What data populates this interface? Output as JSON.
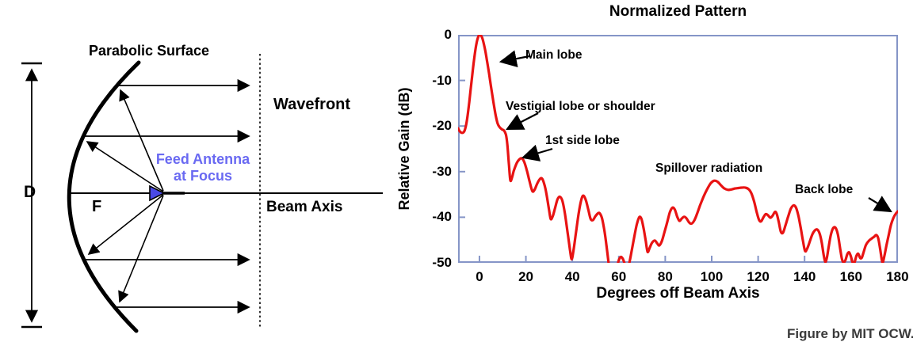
{
  "figure_credit": "Figure by MIT OCW.",
  "left_diagram": {
    "labels": {
      "parabolic_surface": "Parabolic Surface",
      "wavefront": "Wavefront",
      "feed_antenna_line1": "Feed Antenna",
      "feed_antenna_line2": "at Focus",
      "beam_axis": "Beam Axis",
      "diameter": "D",
      "focal_length": "F"
    },
    "colors": {
      "feed_text": "#6a6af2",
      "feed_triangle": "#4a4ae6",
      "line": "#000000"
    }
  },
  "chart_data": {
    "type": "line",
    "title": "Normalized Pattern",
    "xlabel": "Degrees off Beam Axis",
    "ylabel": "Relative Gain (dB)",
    "xlim": [
      -9.2,
      180.2
    ],
    "ylim": [
      -50,
      0
    ],
    "x_ticks": [
      0,
      20,
      40,
      60,
      80,
      100,
      120,
      140,
      160,
      180
    ],
    "y_ticks": [
      0,
      -10,
      -20,
      -30,
      -40,
      -50
    ],
    "grid": false,
    "legend": "none",
    "line_color": "#e81313",
    "frame_color": "#8595c7",
    "series": [
      {
        "name": "normalized gain pattern",
        "points": [
          [
            -9.2,
            -20.5
          ],
          [
            -8.4,
            -21.2
          ],
          [
            -7.4,
            -21.5
          ],
          [
            -6.4,
            -21.0
          ],
          [
            -5.4,
            -18.8
          ],
          [
            -4.4,
            -14.8
          ],
          [
            -3.4,
            -10.2
          ],
          [
            -2.4,
            -5.8
          ],
          [
            -1.4,
            -2.2
          ],
          [
            -0.5,
            -0.4
          ],
          [
            0.3,
            0.0
          ],
          [
            1.2,
            -0.7
          ],
          [
            2.2,
            -2.7
          ],
          [
            3.2,
            -5.5
          ],
          [
            4.2,
            -8.7
          ],
          [
            5.2,
            -12.1
          ],
          [
            6.2,
            -15.3
          ],
          [
            7.0,
            -17.7
          ],
          [
            7.8,
            -19.4
          ],
          [
            8.6,
            -20.2
          ],
          [
            9.6,
            -20.7
          ],
          [
            10.6,
            -21.0
          ],
          [
            11.4,
            -21.9
          ],
          [
            12.0,
            -24.0
          ],
          [
            12.7,
            -28.5
          ],
          [
            13.3,
            -31.9
          ],
          [
            14.0,
            -31.3
          ],
          [
            14.8,
            -29.8
          ],
          [
            16.0,
            -28.2
          ],
          [
            17.2,
            -27.3
          ],
          [
            18.3,
            -27.1
          ],
          [
            19.3,
            -27.9
          ],
          [
            20.4,
            -29.7
          ],
          [
            21.6,
            -32.2
          ],
          [
            22.8,
            -34.3
          ],
          [
            23.8,
            -33.9
          ],
          [
            24.8,
            -32.7
          ],
          [
            25.9,
            -31.7
          ],
          [
            26.9,
            -31.5
          ],
          [
            27.9,
            -32.7
          ],
          [
            28.9,
            -35.0
          ],
          [
            29.9,
            -38.2
          ],
          [
            30.7,
            -40.4
          ],
          [
            31.6,
            -39.7
          ],
          [
            32.6,
            -37.9
          ],
          [
            33.6,
            -36.1
          ],
          [
            34.6,
            -35.5
          ],
          [
            35.7,
            -36.4
          ],
          [
            36.8,
            -39.2
          ],
          [
            38.0,
            -43.5
          ],
          [
            39.0,
            -47.2
          ],
          [
            39.7,
            -49.2
          ],
          [
            40.5,
            -47.3
          ],
          [
            41.6,
            -43.2
          ],
          [
            42.8,
            -38.9
          ],
          [
            44.0,
            -35.9
          ],
          [
            44.9,
            -35.3
          ],
          [
            45.9,
            -36.4
          ],
          [
            46.9,
            -38.4
          ],
          [
            47.9,
            -40.4
          ],
          [
            48.9,
            -40.6
          ],
          [
            49.9,
            -39.8
          ],
          [
            50.9,
            -39.2
          ],
          [
            51.7,
            -39.1
          ],
          [
            52.7,
            -40.1
          ],
          [
            53.7,
            -42.6
          ],
          [
            54.7,
            -46.2
          ],
          [
            55.5,
            -49.6
          ],
          [
            56.2,
            -52.0
          ],
          [
            57.5,
            -53.0
          ],
          [
            59.0,
            -51.5
          ],
          [
            60.0,
            -49.4
          ],
          [
            60.9,
            -48.7
          ],
          [
            61.7,
            -49.1
          ],
          [
            62.4,
            -50.0
          ],
          [
            63.1,
            -51.2
          ],
          [
            64.0,
            -51.0
          ],
          [
            64.8,
            -49.4
          ],
          [
            65.6,
            -47.2
          ],
          [
            66.6,
            -44.5
          ],
          [
            67.7,
            -41.7
          ],
          [
            68.8,
            -40.0
          ],
          [
            69.7,
            -40.3
          ],
          [
            70.6,
            -42.2
          ],
          [
            71.6,
            -45.2
          ],
          [
            72.4,
            -47.6
          ],
          [
            73.3,
            -46.7
          ],
          [
            74.3,
            -45.6
          ],
          [
            75.5,
            -45.1
          ],
          [
            76.5,
            -45.7
          ],
          [
            77.4,
            -46.2
          ],
          [
            78.5,
            -45.3
          ],
          [
            79.6,
            -43.4
          ],
          [
            80.8,
            -41.2
          ],
          [
            82.0,
            -38.9
          ],
          [
            83.1,
            -37.9
          ],
          [
            84.1,
            -38.3
          ],
          [
            85.1,
            -39.8
          ],
          [
            86.1,
            -40.8
          ],
          [
            87.1,
            -40.3
          ],
          [
            88.1,
            -39.9
          ],
          [
            89.1,
            -40.2
          ],
          [
            90.2,
            -41.1
          ],
          [
            91.3,
            -41.4
          ],
          [
            92.4,
            -40.8
          ],
          [
            93.6,
            -39.4
          ],
          [
            95.0,
            -37.4
          ],
          [
            96.5,
            -35.5
          ],
          [
            98.0,
            -33.9
          ],
          [
            99.5,
            -32.6
          ],
          [
            101.0,
            -32.0
          ],
          [
            102.5,
            -32.2
          ],
          [
            104.0,
            -33.0
          ],
          [
            105.5,
            -33.7
          ],
          [
            107.0,
            -34.0
          ],
          [
            108.5,
            -33.9
          ],
          [
            110.0,
            -33.7
          ],
          [
            111.5,
            -33.6
          ],
          [
            113.0,
            -33.5
          ],
          [
            114.5,
            -33.5
          ],
          [
            116.0,
            -33.9
          ],
          [
            117.2,
            -34.9
          ],
          [
            118.3,
            -36.6
          ],
          [
            119.4,
            -38.9
          ],
          [
            120.4,
            -40.6
          ],
          [
            121.3,
            -40.9
          ],
          [
            122.3,
            -40.0
          ],
          [
            123.3,
            -39.3
          ],
          [
            124.3,
            -39.6
          ],
          [
            125.3,
            -40.1
          ],
          [
            126.3,
            -39.6
          ],
          [
            127.3,
            -38.8
          ],
          [
            128.1,
            -39.4
          ],
          [
            128.9,
            -41.1
          ],
          [
            129.8,
            -43.2
          ],
          [
            130.7,
            -43.4
          ],
          [
            131.7,
            -41.9
          ],
          [
            132.9,
            -39.9
          ],
          [
            134.1,
            -38.1
          ],
          [
            135.3,
            -37.4
          ],
          [
            136.3,
            -37.9
          ],
          [
            137.3,
            -39.6
          ],
          [
            138.3,
            -42.2
          ],
          [
            139.3,
            -45.2
          ],
          [
            140.2,
            -47.4
          ],
          [
            141.1,
            -46.9
          ],
          [
            142.2,
            -45.4
          ],
          [
            143.3,
            -43.8
          ],
          [
            144.4,
            -42.9
          ],
          [
            145.5,
            -42.7
          ],
          [
            146.5,
            -43.6
          ],
          [
            147.4,
            -45.6
          ],
          [
            148.2,
            -48.2
          ],
          [
            148.9,
            -49.8
          ],
          [
            149.6,
            -48.9
          ],
          [
            150.4,
            -46.4
          ],
          [
            151.3,
            -43.9
          ],
          [
            152.3,
            -42.4
          ],
          [
            153.3,
            -42.3
          ],
          [
            154.3,
            -43.7
          ],
          [
            155.3,
            -46.8
          ],
          [
            156.1,
            -49.2
          ],
          [
            156.8,
            -49.9
          ],
          [
            157.6,
            -49.4
          ],
          [
            158.4,
            -48.1
          ],
          [
            159.2,
            -47.7
          ],
          [
            160.0,
            -48.7
          ],
          [
            160.7,
            -49.9
          ],
          [
            161.5,
            -49.9
          ],
          [
            162.3,
            -48.5
          ],
          [
            163.1,
            -48.0
          ],
          [
            163.9,
            -48.9
          ],
          [
            164.6,
            -48.9
          ],
          [
            165.4,
            -47.7
          ],
          [
            166.4,
            -46.1
          ],
          [
            167.6,
            -45.2
          ],
          [
            168.8,
            -44.7
          ],
          [
            169.9,
            -44.3
          ],
          [
            170.9,
            -43.9
          ],
          [
            171.7,
            -44.6
          ],
          [
            172.5,
            -46.8
          ],
          [
            173.2,
            -49.2
          ],
          [
            173.7,
            -49.9
          ],
          [
            174.4,
            -48.4
          ],
          [
            175.3,
            -46.1
          ],
          [
            176.3,
            -43.7
          ],
          [
            177.3,
            -41.5
          ],
          [
            178.3,
            -40.1
          ],
          [
            179.3,
            -39.2
          ],
          [
            180.2,
            -38.7
          ]
        ]
      }
    ],
    "annotations": [
      {
        "name": "main-lobe",
        "label": "Main lobe",
        "px": [
          663,
          61
        ],
        "arrow": [
          668,
          71,
          632,
          78
        ]
      },
      {
        "name": "vestigial-lobe",
        "label": "Vestigial lobe or shoulder",
        "px": [
          638,
          126
        ],
        "arrow": [
          679,
          143,
          640,
          163
        ]
      },
      {
        "name": "first-side-lobe",
        "label": "1st side lobe",
        "px": [
          688,
          169
        ],
        "arrow": [
          697,
          188,
          660,
          199
        ]
      },
      {
        "name": "spillover-radiation",
        "label": "Spillover radiation",
        "px": [
          827,
          204
        ],
        "arrow": null
      },
      {
        "name": "back-lobe",
        "label": "Back lobe",
        "px": [
          1003,
          231
        ],
        "arrow": [
          1096,
          250,
          1124,
          267
        ]
      }
    ]
  }
}
